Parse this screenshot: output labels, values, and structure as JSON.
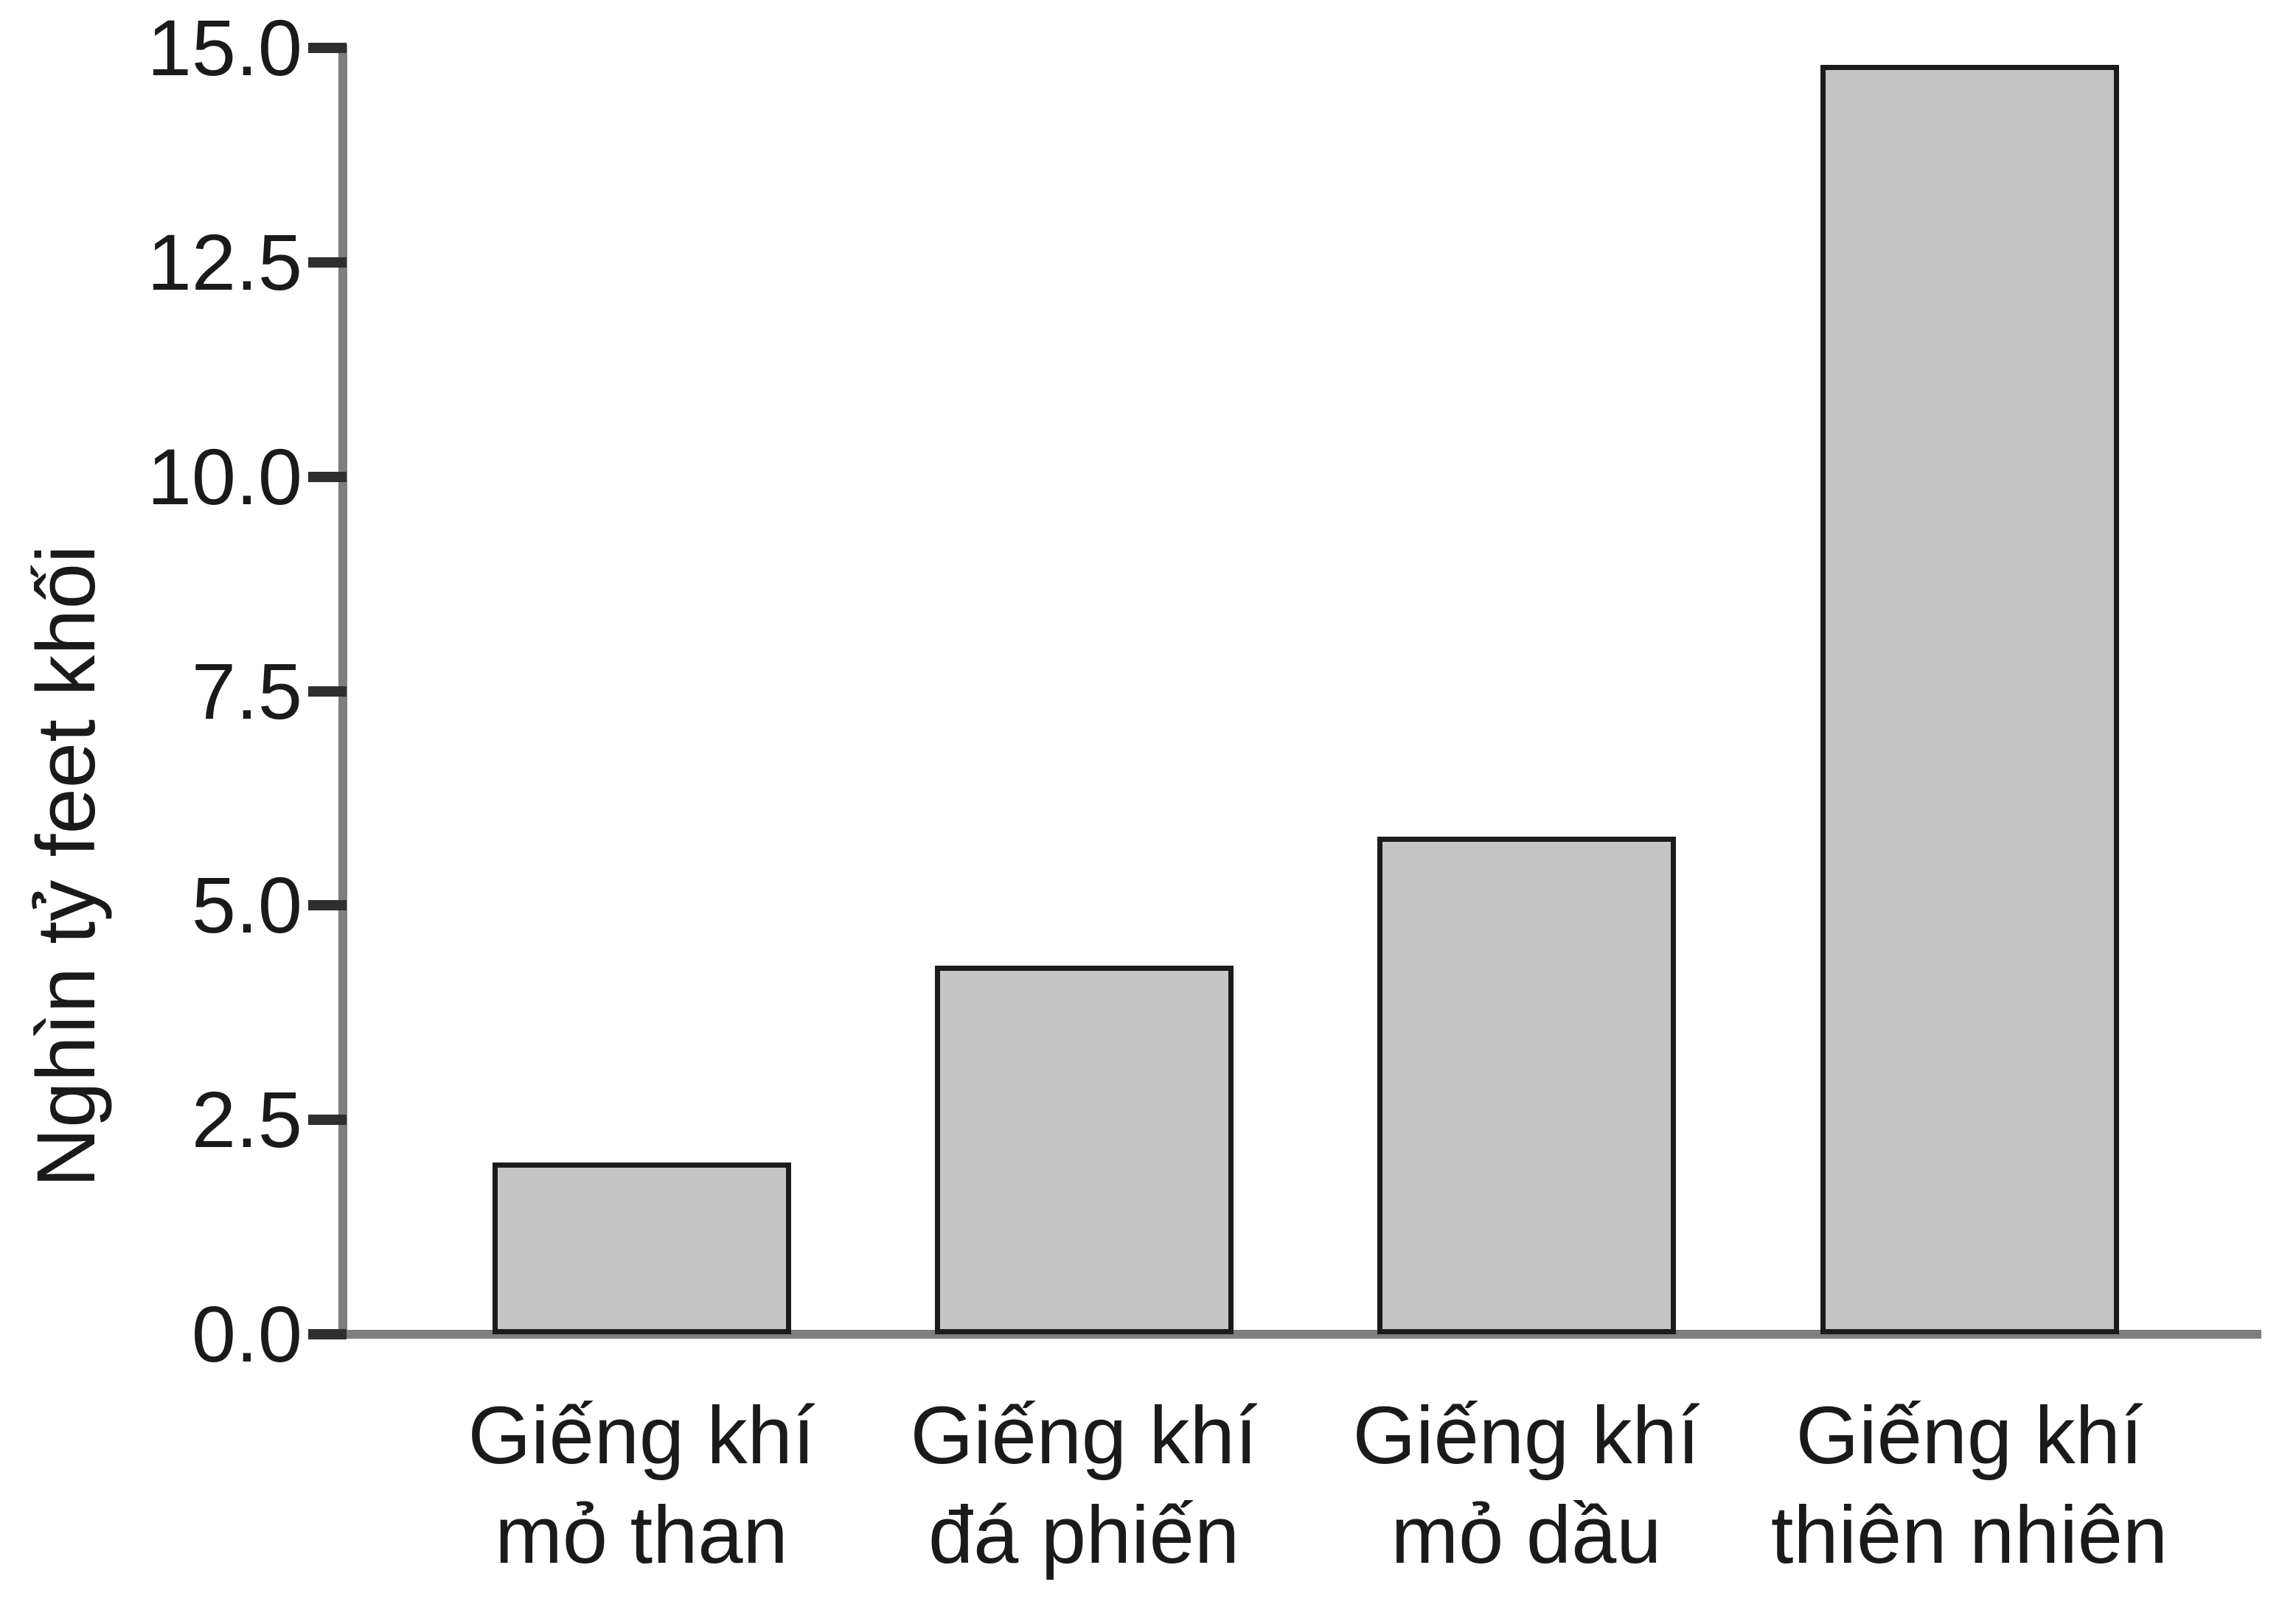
{
  "chart_data": {
    "type": "bar",
    "title": "",
    "xlabel": "",
    "ylabel": "Nghìn tỷ feet khối",
    "categories": [
      "Giếng khí mỏ than",
      "Giếng khí đá phiến",
      "Giếng khí mỏ dầu",
      "Giếng khí thiên nhiên"
    ],
    "category_lines": [
      [
        "Giếng khí",
        "mỏ than"
      ],
      [
        "Giếng khí",
        "đá phiến"
      ],
      [
        "Giếng khí",
        "mỏ dầu"
      ],
      [
        "Giếng khí",
        "thiên nhiên"
      ]
    ],
    "values": [
      2.0,
      4.3,
      5.8,
      14.8
    ],
    "ylim": [
      0,
      15
    ],
    "ytick_labels": [
      "15.0",
      "12.5",
      "10.0",
      "7.5",
      "5.0",
      "2.5",
      "0.0"
    ],
    "ytick_values": [
      15,
      12.5,
      10,
      7.5,
      5,
      2.5,
      0
    ],
    "grid": false,
    "legend": "none",
    "colors": {
      "bar_fill": "#c5c5c5",
      "bar_border": "#1b1b1b",
      "axis": "#7e7e7e",
      "tick": "#2f2f2f",
      "text": "#1a1a1a"
    }
  }
}
